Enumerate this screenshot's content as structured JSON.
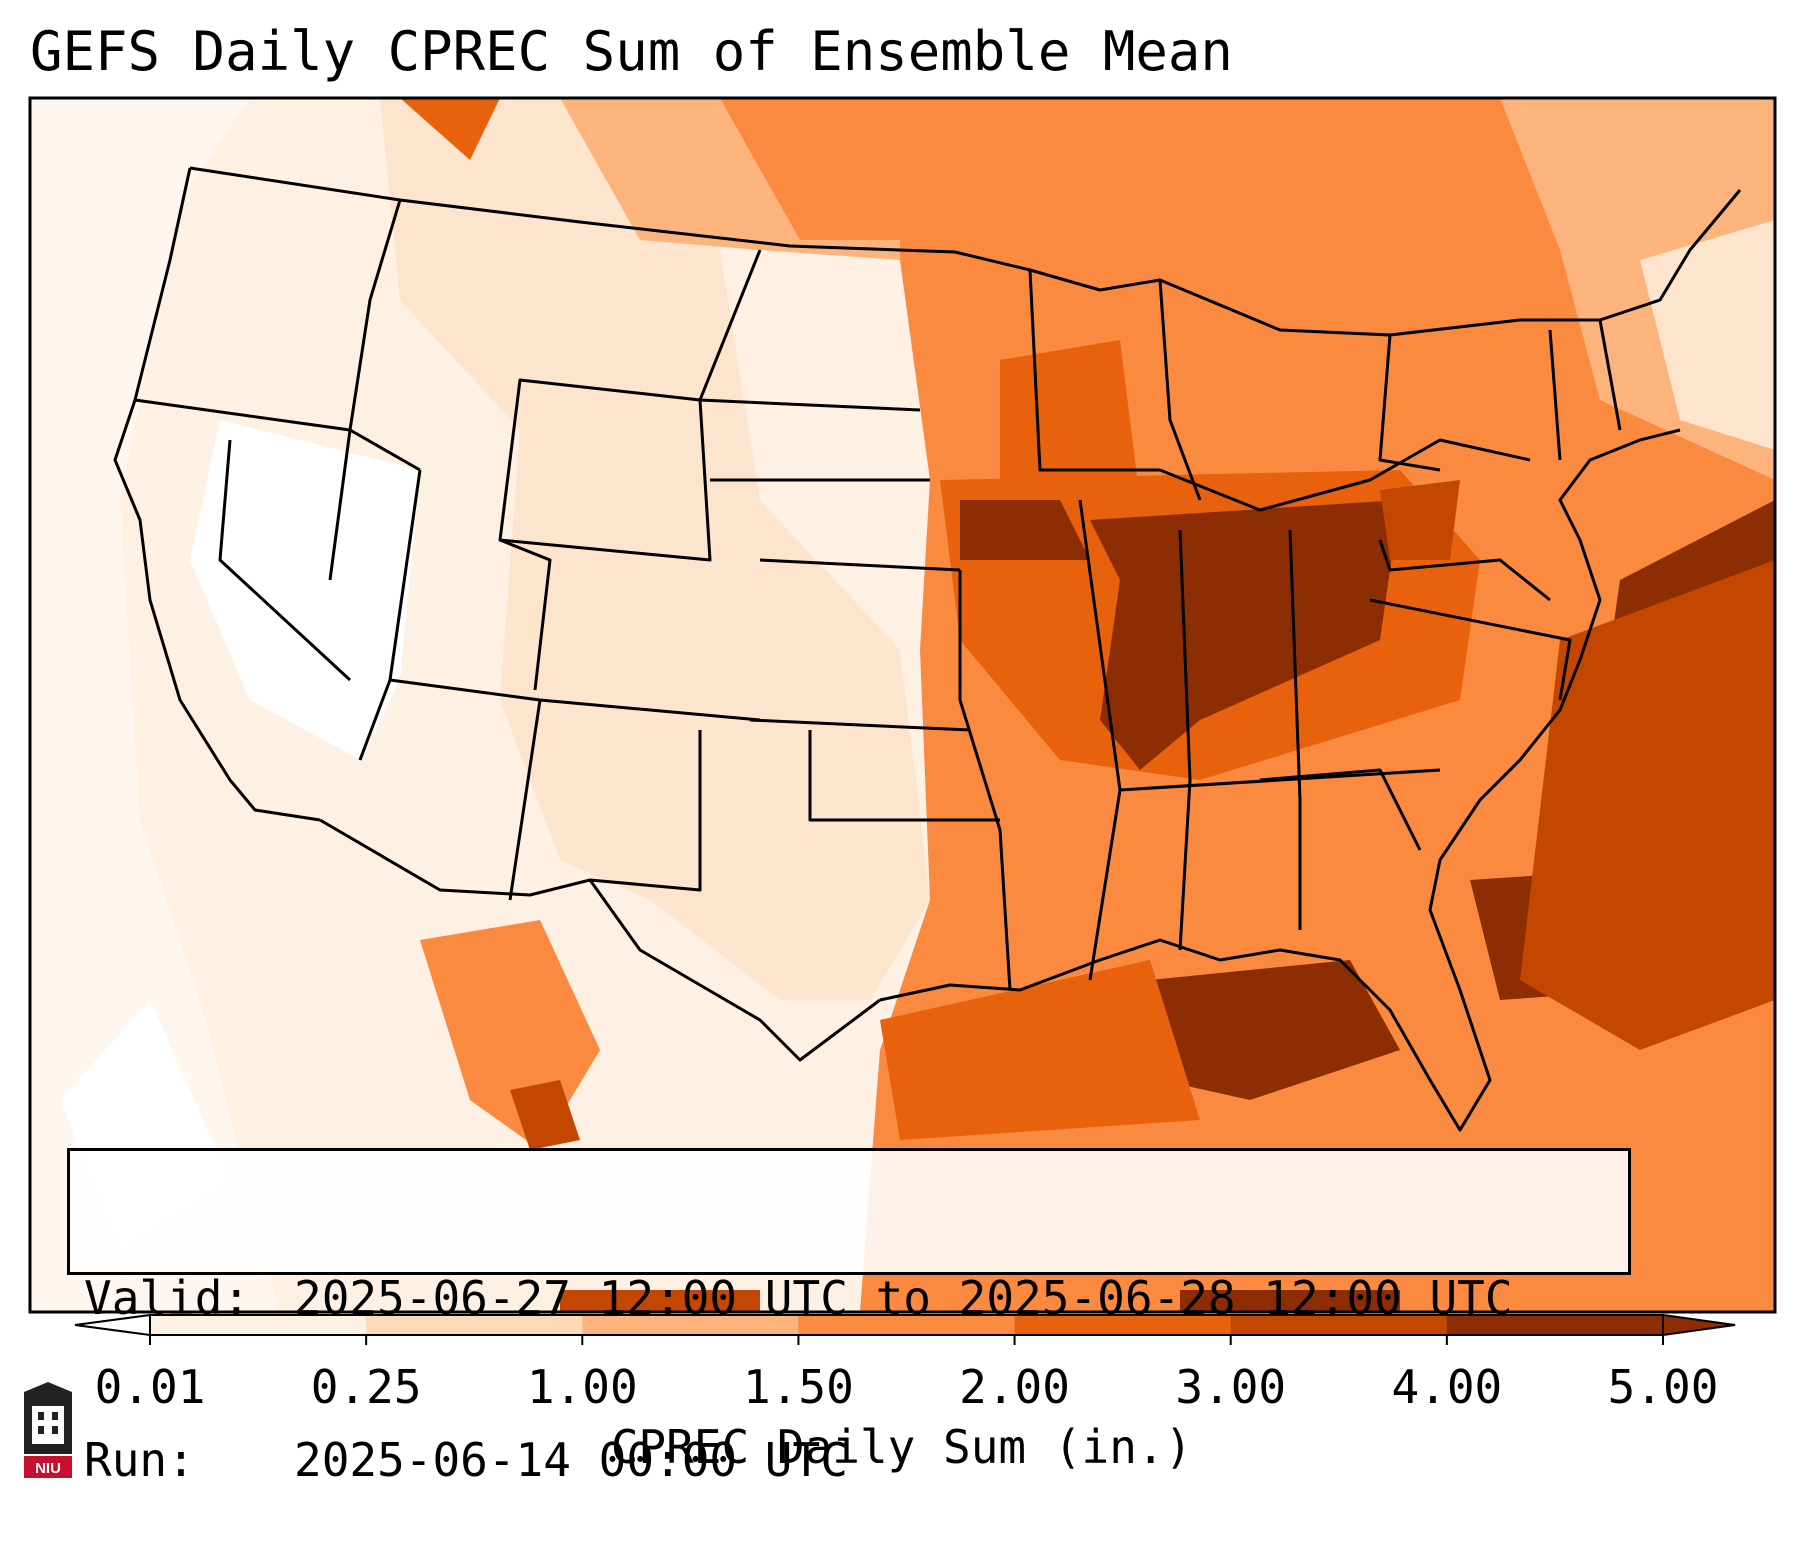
{
  "title": "GEFS Daily CPREC Sum of Ensemble Mean",
  "info": {
    "valid_label": "Valid:",
    "valid_value": "2025-06-27 12:00 UTC to 2025-06-28 12:00 UTC",
    "run_label": "Run:",
    "run_value": "2025-06-14 00:00 UTC"
  },
  "colorbar": {
    "label": "CPREC Daily Sum (in.)",
    "ticks": [
      "0.01",
      "0.25",
      "1.00",
      "1.50",
      "2.00",
      "3.00",
      "4.00",
      "5.00"
    ],
    "colors": [
      "#ffffff",
      "#fff0e4",
      "#fdd9b8",
      "#fdb47c",
      "#f98a40",
      "#e8620d",
      "#c44700",
      "#8c2d04"
    ],
    "extend": "both"
  },
  "logo": {
    "text": "NIU",
    "icon": "niu-logo-icon"
  }
}
